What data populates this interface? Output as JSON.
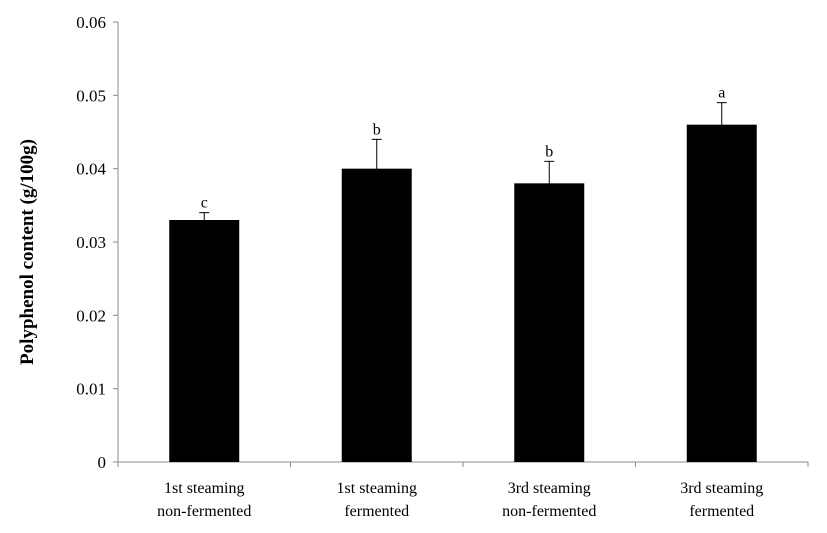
{
  "chart_data": {
    "type": "bar",
    "title": "",
    "xlabel": "",
    "ylabel": "Polyphenol content (g/100g)",
    "ylim": [
      0,
      0.06
    ],
    "yticks": [
      0,
      0.01,
      0.02,
      0.03,
      0.04,
      0.05,
      0.06
    ],
    "ytick_labels": [
      "0",
      "0.01",
      "0.02",
      "0.03",
      "0.04",
      "0.05",
      "0.06"
    ],
    "grid": false,
    "legend": "none",
    "bar_color": "#000000",
    "categories": [
      [
        "1st steaming",
        "non-fermented"
      ],
      [
        "1st steaming",
        "fermented"
      ],
      [
        "3rd steaming",
        "non-fermented"
      ],
      [
        "3rd steaming",
        "fermented"
      ]
    ],
    "values": [
      0.033,
      0.04,
      0.038,
      0.046
    ],
    "errors": [
      0.001,
      0.004,
      0.003,
      0.003
    ],
    "annotations": [
      "c",
      "b",
      "b",
      "a"
    ]
  }
}
